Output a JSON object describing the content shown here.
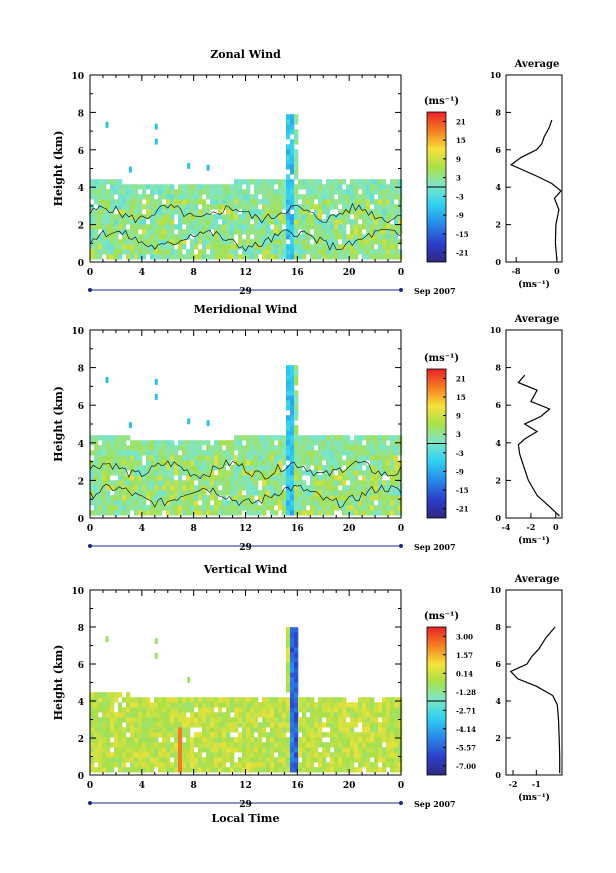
{
  "figure": {
    "xaxis_label": "Local Time",
    "unit_label": "(ms⁻¹)",
    "date_label": "Sep 2007",
    "day_label": "29",
    "avg_title": "Average"
  },
  "chart_data": [
    {
      "type": "heatmap",
      "title": "Zonal Wind",
      "ylabel": "Height (km)",
      "xlim": [
        0,
        24
      ],
      "ylim": [
        0,
        10
      ],
      "xticks": [
        "0",
        "4",
        "8",
        "12",
        "16",
        "20",
        "0"
      ],
      "yticks": [
        "0",
        "2",
        "4",
        "6",
        "8",
        "10"
      ],
      "colorbar": {
        "ticks": [
          "21",
          "15",
          "9",
          "3",
          "-3",
          "-9",
          "-15",
          "-21"
        ],
        "range": [
          -24,
          24
        ]
      },
      "average_profile": {
        "xlim": [
          -10,
          1
        ],
        "xticks": [
          "-8",
          "0"
        ],
        "height": [
          0.1,
          1,
          2,
          2.8,
          3.4,
          3.8,
          4.2,
          4.6,
          5.2,
          5.6,
          6,
          6.3,
          6.7,
          7.2,
          7.6
        ],
        "value": [
          0,
          -0.3,
          -0.2,
          0.4,
          -0.5,
          0.8,
          -1,
          -4,
          -9,
          -7,
          -4,
          -3,
          -2.5,
          -1.5,
          -1
        ]
      }
    },
    {
      "type": "heatmap",
      "title": "Meridional Wind",
      "ylabel": "Height (km)",
      "xlim": [
        0,
        24
      ],
      "ylim": [
        0,
        10
      ],
      "xticks": [
        "0",
        "4",
        "8",
        "12",
        "16",
        "20",
        "0"
      ],
      "yticks": [
        "0",
        "2",
        "4",
        "6",
        "8",
        "10"
      ],
      "colorbar": {
        "ticks": [
          "21",
          "15",
          "9",
          "3",
          "-3",
          "-9",
          "-15",
          "-21"
        ],
        "range": [
          -24,
          24
        ]
      },
      "average_profile": {
        "xlim": [
          -4,
          0.5
        ],
        "xticks": [
          "-4",
          "-2",
          "0"
        ],
        "height": [
          0.1,
          0.6,
          1.2,
          2,
          2.8,
          3.4,
          3.9,
          4.2,
          4.6,
          5,
          5.4,
          5.8,
          6.2,
          6.8,
          7.2,
          7.6
        ],
        "value": [
          0.3,
          -0.5,
          -1.5,
          -2.2,
          -2.6,
          -2.9,
          -3,
          -2.5,
          -1.5,
          -2.5,
          -1.2,
          -0.5,
          -2,
          -1.5,
          -3,
          -2.5
        ]
      }
    },
    {
      "type": "heatmap",
      "title": "Vertical Wind",
      "ylabel": "Height (km)",
      "xlabel": "Local Time",
      "xlim": [
        0,
        24
      ],
      "ylim": [
        0,
        10
      ],
      "xticks": [
        "0",
        "4",
        "8",
        "12",
        "16",
        "20",
        "0"
      ],
      "yticks": [
        "0",
        "2",
        "4",
        "6",
        "8",
        "10"
      ],
      "colorbar": {
        "ticks": [
          "3.00",
          "1.57",
          "0.14",
          "-1.28",
          "-2.71",
          "-4.14",
          "-5.57",
          "-7.00"
        ],
        "range": [
          -7.7,
          3.7
        ]
      },
      "average_profile": {
        "xlim": [
          -2.3,
          0.1
        ],
        "xticks": [
          "-2",
          "-1"
        ],
        "height": [
          0.1,
          1,
          2,
          3,
          3.8,
          4.3,
          4.8,
          5.2,
          5.6,
          6,
          6.4,
          6.8,
          7.4,
          8
        ],
        "value": [
          0,
          0,
          -0.02,
          -0.05,
          -0.1,
          -0.3,
          -1,
          -1.8,
          -2.1,
          -1.4,
          -1.2,
          -0.9,
          -0.6,
          -0.2
        ]
      }
    }
  ]
}
